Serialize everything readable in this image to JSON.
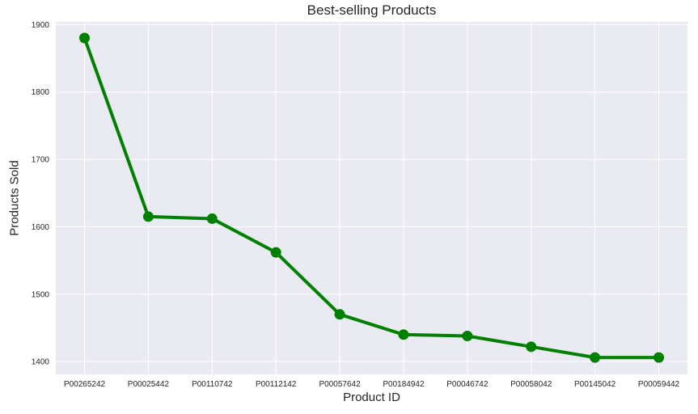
{
  "chart_data": {
    "type": "line",
    "title": "Best-selling Products",
    "xlabel": "Product ID",
    "ylabel": "Products Sold",
    "categories": [
      "P00265242",
      "P00025442",
      "P00110742",
      "P00112142",
      "P00057642",
      "P00184942",
      "P00046742",
      "P00058042",
      "P00145042",
      "P00059442"
    ],
    "series": [
      {
        "name": "Products Sold",
        "values": [
          1880,
          1615,
          1612,
          1562,
          1470,
          1440,
          1438,
          1422,
          1406,
          1406
        ]
      }
    ],
    "ylim": [
      1381,
      1904
    ],
    "yticks": [
      1400,
      1500,
      1600,
      1700,
      1800,
      1900
    ],
    "grid": true,
    "legend": "none",
    "style": {
      "line_color": "#008000",
      "marker": "circle",
      "marker_radius": 6.5,
      "line_width": 4,
      "plot_background": "#EAEAF2",
      "grid_color": "#FFFFFF",
      "text_color": "#262626",
      "tick_font_size": 10,
      "title_font_size": 17,
      "axis_label_font_size": 15
    }
  }
}
